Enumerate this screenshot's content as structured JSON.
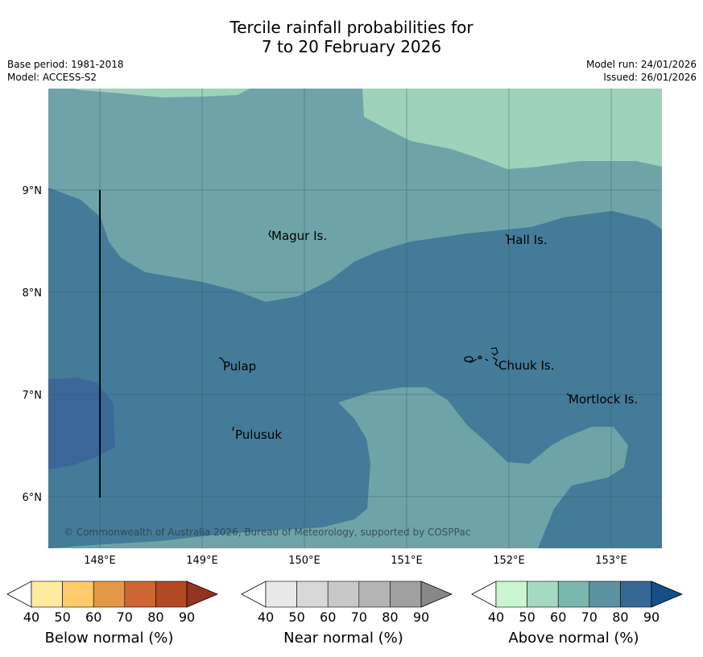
{
  "title": {
    "line1": "Tercile rainfall probabilities for",
    "line2": "7 to 20 February 2026"
  },
  "meta": {
    "base_period": "Base period: 1981-2018",
    "model": "Model: ACCESS-S2",
    "model_run": "Model run: 24/01/2026",
    "issued": "Issued: 26/01/2026"
  },
  "map": {
    "lon_ticks": [
      "148°E",
      "149°E",
      "150°E",
      "151°E",
      "152°E",
      "153°E"
    ],
    "lat_ticks": [
      "9°N",
      "8°N",
      "7°N",
      "6°N"
    ],
    "places": [
      {
        "name": "Magur Is."
      },
      {
        "name": "Hall Is."
      },
      {
        "name": "Pulap"
      },
      {
        "name": "Chuuk Is."
      },
      {
        "name": "Mortlock Is."
      },
      {
        "name": "Pulusuk"
      }
    ],
    "copyright": "© Commonwealth of Australia 2026, Bureau of Meteorology, supported by COSPPac",
    "colors": {
      "above_50_60": "#9fd2bb",
      "above_60_70": "#6ea4a8",
      "above_70_80": "#437b98",
      "above_80_90": "#3a6797"
    }
  },
  "colorbars": [
    {
      "label": "Below normal (%)",
      "ticks": [
        "40",
        "50",
        "60",
        "70",
        "80",
        "90"
      ],
      "colors": [
        "#ffffff",
        "#ffeba0",
        "#fecb68",
        "#e49746",
        "#cf6532",
        "#b34825",
        "#923420"
      ]
    },
    {
      "label": "Near normal (%)",
      "ticks": [
        "40",
        "50",
        "60",
        "70",
        "80",
        "90"
      ],
      "colors": [
        "#ffffff",
        "#e8e8e8",
        "#d8d8d8",
        "#c8c8c8",
        "#b4b4b4",
        "#a0a0a0",
        "#888888"
      ]
    },
    {
      "label": "Above normal (%)",
      "ticks": [
        "40",
        "50",
        "60",
        "70",
        "80",
        "90"
      ],
      "colors": [
        "#ffffff",
        "#c9f6cf",
        "#a5d8c1",
        "#79b6ae",
        "#5d92a1",
        "#356895",
        "#174e87"
      ]
    }
  ]
}
